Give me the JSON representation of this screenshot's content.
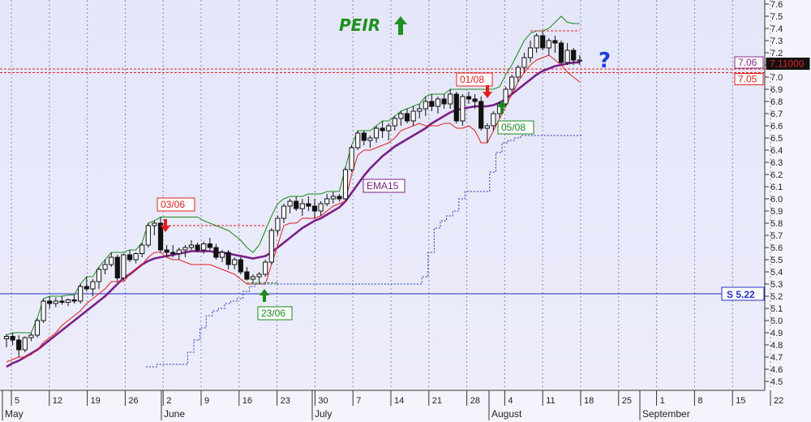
{
  "chart_data": {
    "type": "candlestick",
    "title": "PEIR",
    "y_range": [
      4.5,
      7.6
    ],
    "y_ticks": [
      4.5,
      4.6,
      4.7,
      4.8,
      4.9,
      5.0,
      5.1,
      5.2,
      5.3,
      5.4,
      5.5,
      5.6,
      5.7,
      5.8,
      5.9,
      6.0,
      6.1,
      6.2,
      6.3,
      6.4,
      6.5,
      6.6,
      6.7,
      6.8,
      6.9,
      7.0,
      7.1,
      7.2,
      7.3,
      7.4,
      7.5,
      7.6
    ],
    "y_tick_labels": [
      "4.5",
      "4.6",
      "4.7",
      "4.8",
      "4.9",
      "5.0",
      "5.1",
      "5.2",
      "5.3",
      "5.4",
      "5.5",
      "5.6",
      "5.7",
      "5.8",
      "5.9",
      "6.0",
      "6.1",
      "6.2",
      "6.3",
      "6.4",
      "6.5",
      "6.6",
      "6.7",
      "6.8",
      "6.9",
      "7.0",
      "7.1",
      "7.2",
      "7.3",
      "7.4",
      "7.5",
      "7.6"
    ],
    "x_tick_labels": [
      "5",
      "12",
      "19",
      "26",
      "2",
      "9",
      "16",
      "23",
      "30",
      "7",
      "14",
      "21",
      "28",
      "4",
      "11",
      "18",
      "25",
      "1",
      "8",
      "15",
      "22"
    ],
    "months": [
      "May",
      "June",
      "July",
      "August",
      "September"
    ],
    "grid": "vertical dotted",
    "candles": [
      [
        4.85,
        4.89,
        4.78,
        4.87
      ],
      [
        4.87,
        4.9,
        4.8,
        4.84
      ],
      [
        4.84,
        4.88,
        4.7,
        4.76
      ],
      [
        4.76,
        4.87,
        4.74,
        4.86
      ],
      [
        4.86,
        4.9,
        4.83,
        4.88
      ],
      [
        4.88,
        5.02,
        4.86,
        5.0
      ],
      [
        5.0,
        5.18,
        4.98,
        5.16
      ],
      [
        5.16,
        5.2,
        5.1,
        5.14
      ],
      [
        5.14,
        5.19,
        5.11,
        5.16
      ],
      [
        5.16,
        5.2,
        5.13,
        5.15
      ],
      [
        5.15,
        5.18,
        5.12,
        5.17
      ],
      [
        5.17,
        5.21,
        5.14,
        5.16
      ],
      [
        5.16,
        5.3,
        5.14,
        5.28
      ],
      [
        5.28,
        5.36,
        5.24,
        5.26
      ],
      [
        5.26,
        5.34,
        5.2,
        5.32
      ],
      [
        5.32,
        5.44,
        5.26,
        5.42
      ],
      [
        5.42,
        5.5,
        5.38,
        5.46
      ],
      [
        5.46,
        5.56,
        5.44,
        5.52
      ],
      [
        5.52,
        5.54,
        5.32,
        5.35
      ],
      [
        5.35,
        5.55,
        5.33,
        5.54
      ],
      [
        5.54,
        5.58,
        5.48,
        5.5
      ],
      [
        5.5,
        5.56,
        5.47,
        5.55
      ],
      [
        5.55,
        5.64,
        5.52,
        5.62
      ],
      [
        5.62,
        5.8,
        5.6,
        5.78
      ],
      [
        5.78,
        5.82,
        5.7,
        5.8
      ],
      [
        5.8,
        5.85,
        5.56,
        5.58
      ],
      [
        5.58,
        5.62,
        5.52,
        5.56
      ],
      [
        5.56,
        5.62,
        5.52,
        5.55
      ],
      [
        5.55,
        5.6,
        5.5,
        5.58
      ],
      [
        5.58,
        5.62,
        5.52,
        5.6
      ],
      [
        5.6,
        5.66,
        5.58,
        5.62
      ],
      [
        5.62,
        5.64,
        5.56,
        5.58
      ],
      [
        5.58,
        5.65,
        5.55,
        5.63
      ],
      [
        5.63,
        5.68,
        5.58,
        5.6
      ],
      [
        5.6,
        5.63,
        5.5,
        5.52
      ],
      [
        5.52,
        5.58,
        5.48,
        5.56
      ],
      [
        5.56,
        5.58,
        5.42,
        5.46
      ],
      [
        5.46,
        5.52,
        5.42,
        5.5
      ],
      [
        5.5,
        5.52,
        5.38,
        5.4
      ],
      [
        5.4,
        5.44,
        5.33,
        5.34
      ],
      [
        5.34,
        5.38,
        5.3,
        5.36
      ],
      [
        5.36,
        5.4,
        5.3,
        5.38
      ],
      [
        5.38,
        5.5,
        5.36,
        5.48
      ],
      [
        5.48,
        5.76,
        5.46,
        5.74
      ],
      [
        5.74,
        5.86,
        5.7,
        5.84
      ],
      [
        5.84,
        5.96,
        5.8,
        5.94
      ],
      [
        5.94,
        6.0,
        5.88,
        5.98
      ],
      [
        5.98,
        6.02,
        5.9,
        5.92
      ],
      [
        5.92,
        6.0,
        5.86,
        5.96
      ],
      [
        5.96,
        6.02,
        5.9,
        5.94
      ],
      [
        5.94,
        6.0,
        5.84,
        5.9
      ],
      [
        5.9,
        5.98,
        5.86,
        5.96
      ],
      [
        5.96,
        6.04,
        5.94,
        6.0
      ],
      [
        6.0,
        6.06,
        5.96,
        6.02
      ],
      [
        6.02,
        6.04,
        5.98,
        6.0
      ],
      [
        6.0,
        6.26,
        5.98,
        6.24
      ],
      [
        6.24,
        6.44,
        6.22,
        6.42
      ],
      [
        6.42,
        6.56,
        6.4,
        6.54
      ],
      [
        6.54,
        6.56,
        6.44,
        6.48
      ],
      [
        6.48,
        6.52,
        6.42,
        6.5
      ],
      [
        6.5,
        6.6,
        6.46,
        6.58
      ],
      [
        6.58,
        6.64,
        6.5,
        6.56
      ],
      [
        6.56,
        6.62,
        6.48,
        6.6
      ],
      [
        6.6,
        6.68,
        6.56,
        6.66
      ],
      [
        6.66,
        6.72,
        6.6,
        6.7
      ],
      [
        6.7,
        6.74,
        6.62,
        6.64
      ],
      [
        6.64,
        6.76,
        6.6,
        6.72
      ],
      [
        6.72,
        6.78,
        6.66,
        6.74
      ],
      [
        6.74,
        6.84,
        6.68,
        6.8
      ],
      [
        6.8,
        6.86,
        6.72,
        6.76
      ],
      [
        6.76,
        6.84,
        6.7,
        6.82
      ],
      [
        6.82,
        6.86,
        6.74,
        6.78
      ],
      [
        6.78,
        6.9,
        6.74,
        6.86
      ],
      [
        6.86,
        6.88,
        6.62,
        6.64
      ],
      [
        6.64,
        6.86,
        6.6,
        6.84
      ],
      [
        6.84,
        6.88,
        6.78,
        6.82
      ],
      [
        6.82,
        6.86,
        6.74,
        6.8
      ],
      [
        6.8,
        6.84,
        6.56,
        6.58
      ],
      [
        6.58,
        6.62,
        6.46,
        6.6
      ],
      [
        6.6,
        6.72,
        6.56,
        6.7
      ],
      [
        6.7,
        6.8,
        6.66,
        6.78
      ],
      [
        6.78,
        6.92,
        6.76,
        6.9
      ],
      [
        6.9,
        7.02,
        6.86,
        7.0
      ],
      [
        7.0,
        7.1,
        6.96,
        7.08
      ],
      [
        7.08,
        7.2,
        7.04,
        7.16
      ],
      [
        7.16,
        7.3,
        7.12,
        7.24
      ],
      [
        7.24,
        7.36,
        7.2,
        7.34
      ],
      [
        7.34,
        7.38,
        7.22,
        7.24
      ],
      [
        7.24,
        7.32,
        7.18,
        7.3
      ],
      [
        7.3,
        7.34,
        7.2,
        7.28
      ],
      [
        7.28,
        7.3,
        7.1,
        7.12
      ],
      [
        7.12,
        7.28,
        7.1,
        7.22
      ],
      [
        7.22,
        7.24,
        7.1,
        7.14
      ],
      [
        7.14,
        7.18,
        7.1,
        7.14
      ]
    ],
    "series": [
      {
        "name": "EMA15",
        "color": "#7a1f8a",
        "values": [
          4.62,
          4.65,
          4.67,
          4.7,
          4.73,
          4.76,
          4.8,
          4.84,
          4.88,
          4.92,
          4.96,
          5.0,
          5.04,
          5.08,
          5.12,
          5.16,
          5.2,
          5.25,
          5.3,
          5.35,
          5.38,
          5.42,
          5.46,
          5.49,
          5.51,
          5.52,
          5.53,
          5.54,
          5.55,
          5.56,
          5.57,
          5.57,
          5.57,
          5.57,
          5.56,
          5.56,
          5.55,
          5.54,
          5.53,
          5.52,
          5.51,
          5.52,
          5.53,
          5.56,
          5.6,
          5.64,
          5.68,
          5.72,
          5.76,
          5.79,
          5.82,
          5.84,
          5.87,
          5.9,
          5.93,
          5.98,
          6.05,
          6.12,
          6.19,
          6.25,
          6.3,
          6.35,
          6.39,
          6.43,
          6.46,
          6.49,
          6.52,
          6.55,
          6.58,
          6.62,
          6.65,
          6.68,
          6.71,
          6.73,
          6.74,
          6.75,
          6.76,
          6.76,
          6.76,
          6.77,
          6.79,
          6.82,
          6.86,
          6.9,
          6.94,
          6.98,
          7.02,
          7.05,
          7.07,
          7.09,
          7.1,
          7.11,
          7.12,
          7.12
        ]
      },
      {
        "name": "Upper band",
        "color": "#1a8a1a",
        "values": [
          4.88,
          4.9,
          4.9,
          4.9,
          4.9,
          5.02,
          5.18,
          5.2,
          5.2,
          5.2,
          5.21,
          5.21,
          5.3,
          5.36,
          5.36,
          5.44,
          5.5,
          5.56,
          5.56,
          5.56,
          5.58,
          5.58,
          5.64,
          5.8,
          5.82,
          5.85,
          5.85,
          5.85,
          5.85,
          5.85,
          5.85,
          5.85,
          5.82,
          5.8,
          5.78,
          5.76,
          5.74,
          5.7,
          5.66,
          5.6,
          5.56,
          5.62,
          5.74,
          5.86,
          5.96,
          6.0,
          6.02,
          6.02,
          6.02,
          6.04,
          6.04,
          6.04,
          6.06,
          6.06,
          6.06,
          6.26,
          6.44,
          6.56,
          6.56,
          6.56,
          6.6,
          6.64,
          6.64,
          6.68,
          6.72,
          6.74,
          6.76,
          6.78,
          6.84,
          6.86,
          6.86,
          6.86,
          6.9,
          6.9,
          6.9,
          6.9,
          6.9,
          6.9,
          6.9,
          6.9,
          6.92,
          7.02,
          7.1,
          7.2,
          7.3,
          7.36,
          7.38,
          7.38,
          7.4,
          7.45,
          7.5,
          7.45,
          7.44,
          7.44
        ]
      },
      {
        "name": "Lower band",
        "color": "#e02020",
        "values": [
          4.66,
          4.68,
          4.7,
          4.7,
          4.72,
          4.76,
          4.82,
          4.86,
          4.9,
          4.96,
          5.0,
          5.04,
          5.08,
          5.14,
          5.18,
          5.22,
          5.26,
          5.32,
          5.32,
          5.32,
          5.38,
          5.42,
          5.46,
          5.52,
          5.56,
          5.56,
          5.52,
          5.5,
          5.5,
          5.48,
          5.46,
          5.46,
          5.46,
          5.46,
          5.44,
          5.42,
          5.4,
          5.38,
          5.34,
          5.3,
          5.3,
          5.3,
          5.3,
          5.46,
          5.62,
          5.78,
          5.8,
          5.8,
          5.84,
          5.84,
          5.84,
          5.86,
          5.9,
          5.94,
          5.96,
          5.98,
          6.2,
          6.36,
          6.4,
          6.4,
          6.42,
          6.44,
          6.46,
          6.5,
          6.56,
          6.58,
          6.6,
          6.62,
          6.6,
          6.6,
          6.6,
          6.62,
          6.62,
          6.58,
          6.58,
          6.6,
          6.56,
          6.46,
          6.46,
          6.56,
          6.66,
          6.76,
          6.86,
          6.96,
          7.04,
          7.1,
          7.14,
          7.16,
          7.18,
          7.14,
          7.1,
          7.04,
          7.0,
          6.96
        ]
      },
      {
        "name": "Stop",
        "color": "#2030c0",
        "values": [
          null,
          null,
          null,
          null,
          null,
          null,
          null,
          null,
          null,
          null,
          null,
          null,
          null,
          null,
          null,
          null,
          null,
          null,
          null,
          null,
          null,
          null,
          null,
          4.62,
          4.62,
          4.64,
          4.64,
          4.64,
          4.64,
          4.64,
          4.74,
          4.84,
          4.94,
          5.04,
          5.08,
          5.1,
          5.14,
          5.16,
          5.18,
          5.24,
          5.28,
          5.3,
          5.3,
          5.3,
          5.3,
          5.3,
          5.3,
          5.3,
          5.3,
          5.3,
          5.3,
          5.3,
          5.3,
          5.3,
          5.3,
          5.3,
          5.3,
          5.3,
          5.3,
          5.3,
          5.3,
          5.3,
          5.3,
          5.3,
          5.3,
          5.3,
          5.3,
          5.3,
          5.36,
          5.56,
          5.76,
          5.82,
          5.86,
          5.9,
          6.0,
          6.06,
          6.06,
          6.06,
          6.06,
          6.22,
          6.38,
          6.46,
          6.48,
          6.5,
          6.52,
          6.52,
          6.52,
          6.52,
          6.52,
          6.52,
          6.52,
          6.52,
          6.52,
          6.52
        ]
      }
    ],
    "levels": [
      {
        "label": "S 5.22",
        "value": 5.22,
        "color": "#2030c0"
      },
      {
        "label": "7.06",
        "value": 7.06,
        "color": "#8a2a8a"
      },
      {
        "label": "7.05",
        "value": 7.05,
        "color": "#e02020"
      },
      {
        "label": "7.11000",
        "value": 7.11,
        "color": "#e02020"
      }
    ],
    "annotations": [
      {
        "label": "03/06",
        "color": "#e02020",
        "type": "down"
      },
      {
        "label": "23/06",
        "color": "#1a8a1a",
        "type": "up"
      },
      {
        "label": "01/08",
        "color": "#e02020",
        "type": "down"
      },
      {
        "label": "05/08",
        "color": "#1a8a1a",
        "type": "up"
      },
      {
        "label": "EMA15",
        "color": "#7a1f8a",
        "type": "label"
      },
      {
        "label": "?",
        "color": "#1a3fd8",
        "type": "question"
      }
    ]
  }
}
